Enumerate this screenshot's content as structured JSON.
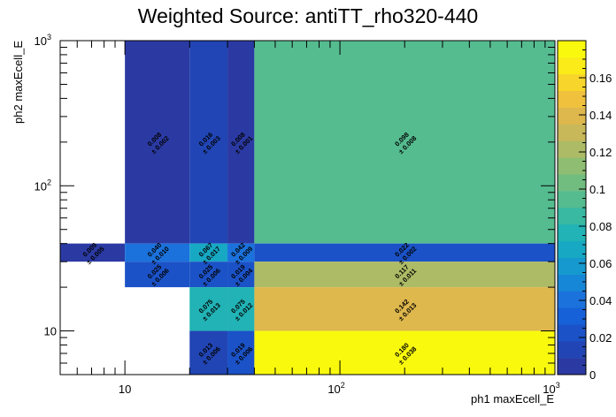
{
  "chart_data": {
    "type": "heatmap",
    "title": "Weighted Source: antiTT_rho320-440",
    "xlabel": "ph1 maxEcell_E",
    "ylabel": "ph2 maxEcell_E",
    "xscale": "log",
    "yscale": "log",
    "xlim": [
      5,
      1000
    ],
    "ylim": [
      5,
      1000
    ],
    "zlim": [
      0,
      0.18
    ],
    "x_ticks": [
      {
        "value": 10,
        "base": "10",
        "exp": ""
      },
      {
        "value": 100,
        "base": "10",
        "exp": "2"
      },
      {
        "value": 1000,
        "base": "10",
        "exp": "3"
      }
    ],
    "y_ticks": [
      {
        "value": 10,
        "base": "10",
        "exp": ""
      },
      {
        "value": 100,
        "base": "10",
        "exp": "2"
      },
      {
        "value": 1000,
        "base": "10",
        "exp": "3"
      }
    ],
    "colorbar_ticks": [
      "0",
      "0.02",
      "0.04",
      "0.06",
      "0.08",
      "0.1",
      "0.12",
      "0.14",
      "0.16"
    ],
    "colorbar_tick_values": [
      0,
      0.02,
      0.04,
      0.06,
      0.08,
      0.1,
      0.12,
      0.14,
      0.16
    ],
    "palette": [
      "#2b3aa3",
      "#2145b4",
      "#1b52c7",
      "#1660d8",
      "#1b72dc",
      "#1686d6",
      "#1599ce",
      "#17a8c4",
      "#21b3b5",
      "#39b9a2",
      "#55bc90",
      "#71bd80",
      "#8fbd72",
      "#adbb66",
      "#c8b85a",
      "#deb74d",
      "#efc13c",
      "#f8d52a",
      "#fbeb19",
      "#f9f90e"
    ],
    "cells": [
      {
        "x0": 10,
        "x1": 20,
        "y0": 40,
        "y1": 1000,
        "value": 0.008,
        "label": "0.008",
        "error": "± 0.002"
      },
      {
        "x0": 20,
        "x1": 30,
        "y0": 40,
        "y1": 1000,
        "value": 0.016,
        "label": "0.016",
        "error": "± 0.003"
      },
      {
        "x0": 30,
        "x1": 40,
        "y0": 40,
        "y1": 1000,
        "value": 0.008,
        "label": "0.008",
        "error": "± 0.001"
      },
      {
        "x0": 40,
        "x1": 1000,
        "y0": 40,
        "y1": 1000,
        "value": 0.098,
        "label": "0.098",
        "error": "± 0.008"
      },
      {
        "x0": 5,
        "x1": 10,
        "y0": 30,
        "y1": 40,
        "value": 0.009,
        "label": "0.009",
        "error": "± 0.005"
      },
      {
        "x0": 10,
        "x1": 20,
        "y0": 30,
        "y1": 40,
        "value": 0.04,
        "label": "0.040",
        "error": "± 0.010"
      },
      {
        "x0": 20,
        "x1": 30,
        "y0": 30,
        "y1": 40,
        "value": 0.067,
        "label": "0.067",
        "error": "± 0.017"
      },
      {
        "x0": 30,
        "x1": 40,
        "y0": 30,
        "y1": 40,
        "value": 0.042,
        "label": "0.042",
        "error": "± 0.009"
      },
      {
        "x0": 40,
        "x1": 1000,
        "y0": 30,
        "y1": 40,
        "value": 0.022,
        "label": "0.022",
        "error": "± 0.002"
      },
      {
        "x0": 10,
        "x1": 20,
        "y0": 20,
        "y1": 30,
        "value": 0.025,
        "label": "0.025",
        "error": "± 0.006"
      },
      {
        "x0": 20,
        "x1": 30,
        "y0": 20,
        "y1": 30,
        "value": 0.025,
        "label": "0.025",
        "error": "± 0.006"
      },
      {
        "x0": 30,
        "x1": 40,
        "y0": 20,
        "y1": 30,
        "value": 0.019,
        "label": "0.019",
        "error": "± 0.004"
      },
      {
        "x0": 40,
        "x1": 1000,
        "y0": 20,
        "y1": 30,
        "value": 0.117,
        "label": "0.117",
        "error": "± 0.011"
      },
      {
        "x0": 20,
        "x1": 30,
        "y0": 10,
        "y1": 20,
        "value": 0.075,
        "label": "0.075",
        "error": "± 0.013"
      },
      {
        "x0": 30,
        "x1": 40,
        "y0": 10,
        "y1": 20,
        "value": 0.075,
        "label": "0.075",
        "error": "± 0.012"
      },
      {
        "x0": 40,
        "x1": 1000,
        "y0": 10,
        "y1": 20,
        "value": 0.142,
        "label": "0.142",
        "error": "± 0.013"
      },
      {
        "x0": 20,
        "x1": 30,
        "y0": 5,
        "y1": 10,
        "value": 0.013,
        "label": "0.013",
        "error": "± 0.006"
      },
      {
        "x0": 30,
        "x1": 40,
        "y0": 5,
        "y1": 10,
        "value": 0.019,
        "label": "0.019",
        "error": "± 0.006"
      },
      {
        "x0": 40,
        "x1": 1000,
        "y0": 5,
        "y1": 10,
        "value": 0.18,
        "label": "0.180",
        "error": "± 0.038"
      }
    ]
  }
}
